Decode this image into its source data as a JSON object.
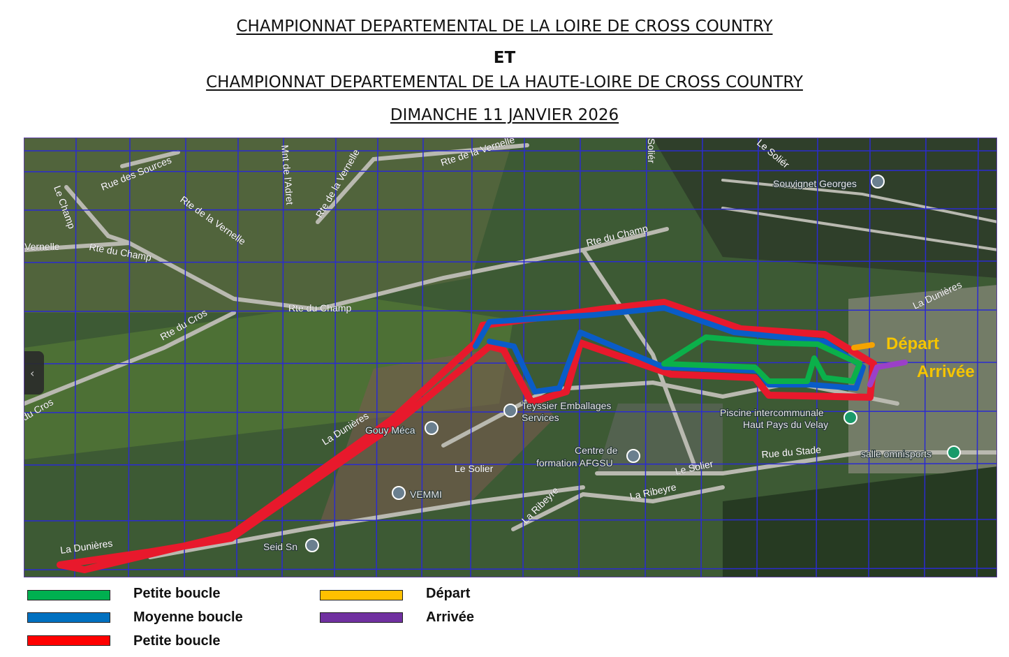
{
  "header": {
    "line1": "CHAMPIONNAT DEPARTEMENTAL DE LA LOIRE DE CROSS COUNTRY",
    "line2": "ET",
    "line3": "CHAMPIONNAT DEPARTEMENTAL DE LA HAUTE-LOIRE DE CROSS COUNTRY",
    "date": "DIMANCHE 11 JANVIER 2026"
  },
  "map": {
    "labels": [
      "Rue des Sources",
      "Le Champ",
      "Vernelle",
      "Rte du Champ",
      "Rte de la Vernelle",
      "Mnt de l'Adret",
      "Rte de la Vernelle",
      "Rte de la Vernelle",
      "Rte du Champ",
      "Rte du Champ",
      "Rte du Cros",
      "du Cros",
      "La Dunières",
      "Le Soliér",
      "Souvignet Georges",
      "La Dunières",
      "Soliér",
      "La Dunières",
      "Rte du Champ"
    ],
    "pois": [
      "Souvignet Georges",
      "Teyssier Emballages",
      "Services",
      "Gouy Méca",
      "Centre de",
      "formation AFGSU",
      "Le Solier",
      "Le Solier",
      "VEMMI",
      "Seid Sn",
      "La Ribeyre",
      "La Ribeyre",
      "Rue du Stade",
      "Piscine intercommunale",
      "Haut Pays du Velay",
      "salle omnisports"
    ],
    "depart_label": "Départ",
    "arrivee_label": "Arrivée",
    "collapse_handle": "‹"
  },
  "legend": [
    {
      "label": "Petite boucle",
      "color": "#00b050"
    },
    {
      "label": "Moyenne boucle",
      "color": "#0070c0"
    },
    {
      "label": "Petite boucle",
      "color": "#ff0000"
    },
    {
      "label": "Départ",
      "color": "#ffc000"
    },
    {
      "label": "Arrivée",
      "color": "#7030a0"
    }
  ],
  "colors": {
    "grid": "#2b2bd0",
    "route_red": "#e8192c",
    "route_blue": "#0a5cc8",
    "route_green": "#0bb04a",
    "depart": "#f5a300",
    "arrivee": "#9b40c8"
  }
}
